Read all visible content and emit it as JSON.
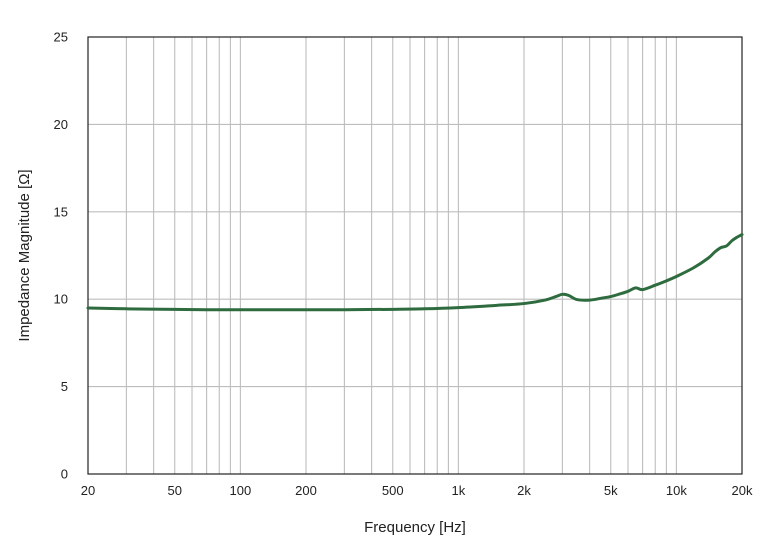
{
  "chart_data": {
    "type": "line",
    "title": "",
    "xlabel": "Frequency [Hz]",
    "ylabel": "Impedance Magnitude [Ω]",
    "x_scale": "log",
    "xlim": [
      20,
      20000
    ],
    "ylim": [
      0,
      25
    ],
    "grid": true,
    "legend": "none",
    "x_tick_values": [
      20,
      50,
      100,
      200,
      500,
      1000,
      2000,
      5000,
      10000,
      20000
    ],
    "x_tick_labels": [
      "20",
      "50",
      "100",
      "200",
      "500",
      "1k",
      "2k",
      "5k",
      "10k",
      "20k"
    ],
    "y_tick_values": [
      0,
      5,
      10,
      15,
      20,
      25
    ],
    "y_tick_labels": [
      "0",
      "5",
      "10",
      "15",
      "20",
      "25"
    ],
    "series": [
      {
        "color": "#2e6b3e",
        "x": [
          20,
          30,
          50,
          70,
          100,
          150,
          200,
          300,
          500,
          700,
          1000,
          1500,
          2000,
          2500,
          2800,
          3000,
          3200,
          3500,
          4000,
          4500,
          5000,
          5500,
          6000,
          6500,
          7000,
          8000,
          9000,
          10000,
          12000,
          14000,
          15000,
          16000,
          17000,
          18000,
          19000,
          20000
        ],
        "y": [
          9.5,
          9.45,
          9.42,
          9.4,
          9.4,
          9.4,
          9.4,
          9.4,
          9.42,
          9.45,
          9.52,
          9.65,
          9.75,
          9.95,
          10.15,
          10.28,
          10.22,
          9.98,
          9.95,
          10.05,
          10.15,
          10.3,
          10.45,
          10.65,
          10.55,
          10.8,
          11.05,
          11.3,
          11.8,
          12.35,
          12.7,
          12.95,
          13.05,
          13.35,
          13.55,
          13.7
        ]
      }
    ]
  }
}
